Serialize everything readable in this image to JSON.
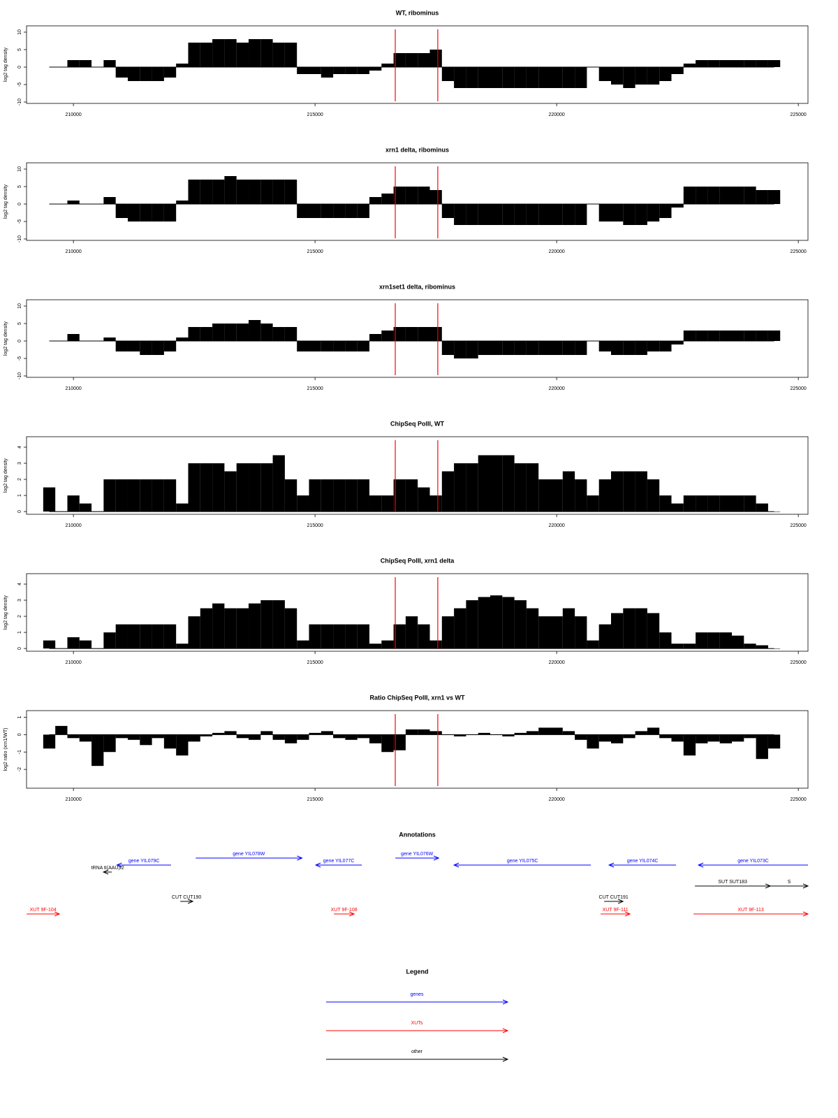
{
  "chart_data": [
    {
      "type": "bar",
      "title": "WT, ribominus",
      "ylabel": "log2 tag density",
      "x": [
        209500,
        209750,
        210000,
        210250,
        210500,
        210750,
        211000,
        211250,
        211500,
        211750,
        212000,
        212250,
        212500,
        212750,
        213000,
        213250,
        213500,
        213750,
        214000,
        214250,
        214500,
        214750,
        215000,
        215250,
        215500,
        215750,
        216000,
        216250,
        216500,
        216750,
        217000,
        217250,
        217500,
        217750,
        218000,
        218250,
        218500,
        218750,
        219000,
        219250,
        219500,
        219750,
        220000,
        220250,
        220500,
        220750,
        221000,
        221250,
        221500,
        221750,
        222000,
        222250,
        222500,
        222750,
        223000,
        223250,
        223500,
        223750,
        224000,
        224250,
        224500
      ],
      "values": [
        null,
        null,
        2,
        2,
        null,
        2,
        -3,
        -4,
        -4,
        -4,
        -3,
        1,
        7,
        7,
        8,
        8,
        7,
        8,
        8,
        7,
        7,
        -2,
        -2,
        -3,
        -2,
        -2,
        -2,
        -1,
        1,
        4,
        4,
        4,
        5,
        -4,
        -6,
        -6,
        -6,
        -6,
        -6,
        -6,
        -6,
        -6,
        -6,
        -6,
        -6,
        null,
        -4,
        -5,
        -6,
        -5,
        -5,
        -4,
        -2,
        1,
        2,
        2,
        2,
        2,
        2,
        2,
        2
      ],
      "xlim": [
        209030,
        225200
      ],
      "xticks": [
        210000,
        215000,
        220000,
        225000
      ],
      "ylim": [
        -10.4,
        11.8
      ],
      "yticks": [
        -10,
        -5,
        0,
        5,
        10
      ],
      "color": "#000000",
      "markers": [
        216660,
        217540
      ],
      "marker_color": "#ff0000"
    },
    {
      "type": "bar",
      "title": "xrn1 delta, ribominus",
      "ylabel": "log2 tag density",
      "x": [
        209500,
        209750,
        210000,
        210250,
        210500,
        210750,
        211000,
        211250,
        211500,
        211750,
        212000,
        212250,
        212500,
        212750,
        213000,
        213250,
        213500,
        213750,
        214000,
        214250,
        214500,
        214750,
        215000,
        215250,
        215500,
        215750,
        216000,
        216250,
        216500,
        216750,
        217000,
        217250,
        217500,
        217750,
        218000,
        218250,
        218500,
        218750,
        219000,
        219250,
        219500,
        219750,
        220000,
        220250,
        220500,
        220750,
        221000,
        221250,
        221500,
        221750,
        222000,
        222250,
        222500,
        222750,
        223000,
        223250,
        223500,
        223750,
        224000,
        224250,
        224500
      ],
      "values": [
        null,
        null,
        1,
        null,
        null,
        2,
        -4,
        -5,
        -5,
        -5,
        -5,
        1,
        7,
        7,
        7,
        8,
        7,
        7,
        7,
        7,
        7,
        -4,
        -4,
        -4,
        -4,
        -4,
        -4,
        2,
        3,
        5,
        5,
        5,
        4,
        -4,
        -6,
        -6,
        -6,
        -6,
        -6,
        -6,
        -6,
        -6,
        -6,
        -6,
        -6,
        null,
        -5,
        -5,
        -6,
        -6,
        -5,
        -4,
        -1,
        5,
        5,
        5,
        5,
        5,
        5,
        4,
        4
      ],
      "xlim": [
        209030,
        225200
      ],
      "xticks": [
        210000,
        215000,
        220000,
        225000
      ],
      "ylim": [
        -10.4,
        11.8
      ],
      "yticks": [
        -10,
        -5,
        0,
        5,
        10
      ],
      "color": "#000000",
      "markers": [
        216660,
        217540
      ],
      "marker_color": "#ff0000"
    },
    {
      "type": "bar",
      "title": "xrn1set1 delta, ribominus",
      "ylabel": "log2 tag density",
      "x": [
        209500,
        209750,
        210000,
        210250,
        210500,
        210750,
        211000,
        211250,
        211500,
        211750,
        212000,
        212250,
        212500,
        212750,
        213000,
        213250,
        213500,
        213750,
        214000,
        214250,
        214500,
        214750,
        215000,
        215250,
        215500,
        215750,
        216000,
        216250,
        216500,
        216750,
        217000,
        217250,
        217500,
        217750,
        218000,
        218250,
        218500,
        218750,
        219000,
        219250,
        219500,
        219750,
        220000,
        220250,
        220500,
        220750,
        221000,
        221250,
        221500,
        221750,
        222000,
        222250,
        222500,
        222750,
        223000,
        223250,
        223500,
        223750,
        224000,
        224250,
        224500
      ],
      "values": [
        null,
        null,
        2,
        null,
        null,
        1,
        -3,
        -3,
        -4,
        -4,
        -3,
        1,
        4,
        4,
        5,
        5,
        5,
        6,
        5,
        4,
        4,
        -3,
        -3,
        -3,
        -3,
        -3,
        -3,
        2,
        3,
        4,
        4,
        4,
        4,
        -4,
        -5,
        -5,
        -4,
        -4,
        -4,
        -4,
        -4,
        -4,
        -4,
        -4,
        -4,
        null,
        -3,
        -4,
        -4,
        -4,
        -3,
        -3,
        -1,
        3,
        3,
        3,
        3,
        3,
        3,
        3,
        3
      ],
      "xlim": [
        209030,
        225200
      ],
      "xticks": [
        210000,
        215000,
        220000,
        225000
      ],
      "ylim": [
        -10.4,
        11.8
      ],
      "yticks": [
        -10,
        -5,
        0,
        5,
        10
      ],
      "color": "#000000",
      "markers": [
        216660,
        217540
      ],
      "marker_color": "#ff0000"
    },
    {
      "type": "bar",
      "title": "ChipSeq PolII, WT",
      "ylabel": "log2 tag density",
      "x": [
        209500,
        209750,
        210000,
        210250,
        210500,
        210750,
        211000,
        211250,
        211500,
        211750,
        212000,
        212250,
        212500,
        212750,
        213000,
        213250,
        213500,
        213750,
        214000,
        214250,
        214500,
        214750,
        215000,
        215250,
        215500,
        215750,
        216000,
        216250,
        216500,
        216750,
        217000,
        217250,
        217500,
        217750,
        218000,
        218250,
        218500,
        218750,
        219000,
        219250,
        219500,
        219750,
        220000,
        220250,
        220500,
        220750,
        221000,
        221250,
        221500,
        221750,
        222000,
        222250,
        222500,
        222750,
        223000,
        223250,
        223500,
        223750,
        224000,
        224250,
        224500
      ],
      "values": [
        1.5,
        0,
        1,
        0.5,
        0,
        2,
        2,
        2,
        2,
        2,
        2,
        0.5,
        3,
        3,
        3,
        2.5,
        3,
        3,
        3,
        3.5,
        2,
        1,
        2,
        2,
        2,
        2,
        2,
        1,
        1,
        2,
        2,
        1.5,
        1,
        2.5,
        3,
        3,
        3.5,
        3.5,
        3.5,
        3,
        3,
        2,
        2,
        2.5,
        2,
        1,
        2,
        2.5,
        2.5,
        2.5,
        2,
        1,
        0.5,
        1,
        1,
        1,
        1,
        1,
        1,
        0.5,
        0
      ],
      "xlim": [
        209030,
        225200
      ],
      "xticks": [
        210000,
        215000,
        220000,
        225000
      ],
      "ylim": [
        -0.17,
        4.65
      ],
      "yticks": [
        0,
        1,
        2,
        3,
        4
      ],
      "color": "#000000",
      "markers": [
        216660,
        217540
      ],
      "marker_color": "#ff0000"
    },
    {
      "type": "bar",
      "title": "ChipSeq PolII, xrn1 delta",
      "ylabel": "log2 tag density",
      "x": [
        209500,
        209750,
        210000,
        210250,
        210500,
        210750,
        211000,
        211250,
        211500,
        211750,
        212000,
        212250,
        212500,
        212750,
        213000,
        213250,
        213500,
        213750,
        214000,
        214250,
        214500,
        214750,
        215000,
        215250,
        215500,
        215750,
        216000,
        216250,
        216500,
        216750,
        217000,
        217250,
        217500,
        217750,
        218000,
        218250,
        218500,
        218750,
        219000,
        219250,
        219500,
        219750,
        220000,
        220250,
        220500,
        220750,
        221000,
        221250,
        221500,
        221750,
        222000,
        222250,
        222500,
        222750,
        223000,
        223250,
        223500,
        223750,
        224000,
        224250,
        224500
      ],
      "values": [
        0.5,
        0,
        0.7,
        0.5,
        0,
        1,
        1.5,
        1.5,
        1.5,
        1.5,
        1.5,
        0.3,
        2,
        2.5,
        2.8,
        2.5,
        2.5,
        2.8,
        3,
        3,
        2.5,
        0.5,
        1.5,
        1.5,
        1.5,
        1.5,
        1.5,
        0.3,
        0.5,
        1.5,
        2,
        1.5,
        0.5,
        2,
        2.5,
        3,
        3.2,
        3.3,
        3.2,
        3,
        2.5,
        2,
        2,
        2.5,
        2,
        0.5,
        1.5,
        2.2,
        2.5,
        2.5,
        2.2,
        1,
        0.3,
        0.3,
        1,
        1,
        1,
        0.8,
        0.3,
        0.2,
        0
      ],
      "xlim": [
        209030,
        225200
      ],
      "xticks": [
        210000,
        215000,
        220000,
        225000
      ],
      "ylim": [
        -0.17,
        4.65
      ],
      "yticks": [
        0,
        1,
        2,
        3,
        4
      ],
      "color": "#000000",
      "markers": [
        216660,
        217540
      ],
      "marker_color": "#ff0000"
    },
    {
      "type": "bar",
      "title": "Ratio ChipSeq PolII, xrn1 vs WT",
      "ylabel": "log2 ratio (xrn1/WT)",
      "x": [
        209500,
        209750,
        210000,
        210250,
        210500,
        210750,
        211000,
        211250,
        211500,
        211750,
        212000,
        212250,
        212500,
        212750,
        213000,
        213250,
        213500,
        213750,
        214000,
        214250,
        214500,
        214750,
        215000,
        215250,
        215500,
        215750,
        216000,
        216250,
        216500,
        216750,
        217000,
        217250,
        217500,
        217750,
        218000,
        218250,
        218500,
        218750,
        219000,
        219250,
        219500,
        219750,
        220000,
        220250,
        220500,
        220750,
        221000,
        221250,
        221500,
        221750,
        222000,
        222250,
        222500,
        222750,
        223000,
        223250,
        223500,
        223750,
        224000,
        224250,
        224500
      ],
      "values": [
        -0.8,
        0.5,
        -0.2,
        -0.4,
        -1.8,
        -1.0,
        -0.2,
        -0.3,
        -0.6,
        -0.2,
        -0.8,
        -1.2,
        -0.4,
        -0.1,
        0.1,
        0.2,
        -0.2,
        -0.3,
        0.2,
        -0.3,
        -0.5,
        -0.3,
        0.1,
        0.2,
        -0.2,
        -0.3,
        -0.2,
        -0.5,
        -1.0,
        -0.9,
        0.3,
        0.3,
        0.2,
        0.0,
        -0.1,
        0.0,
        0.1,
        0.0,
        -0.1,
        0.1,
        0.2,
        0.4,
        0.4,
        0.2,
        -0.3,
        -0.8,
        -0.4,
        -0.5,
        -0.2,
        0.2,
        0.4,
        -0.2,
        -0.4,
        -1.2,
        -0.5,
        -0.4,
        -0.5,
        -0.4,
        -0.2,
        -1.4,
        -0.8
      ],
      "xlim": [
        209030,
        225200
      ],
      "xticks": [
        210000,
        215000,
        220000,
        225000
      ],
      "ylim": [
        -3.08,
        1.38
      ],
      "yticks": [
        -2,
        -1,
        0,
        1
      ],
      "color": "#000000",
      "markers": [
        216660,
        217540
      ],
      "marker_color": "#ff0000"
    }
  ],
  "annotations": {
    "title": "Annotations",
    "xlim": [
      209030,
      225200
    ],
    "features": [
      {
        "label": "gene YIL079C",
        "kind": "gene",
        "strand": "-",
        "start": 210900,
        "end": 212020,
        "color": "#0000ff"
      },
      {
        "label": "gene YIL078W",
        "kind": "gene",
        "strand": "+",
        "start": 212530,
        "end": 214730,
        "color": "#0000ff"
      },
      {
        "label": "gene YIL077C",
        "kind": "gene",
        "strand": "-",
        "start": 215014,
        "end": 215968,
        "color": "#0000ff"
      },
      {
        "label": "gene YIL076W",
        "kind": "gene",
        "strand": "+",
        "start": 216662,
        "end": 217558,
        "color": "#0000ff"
      },
      {
        "label": "gene YIL075C",
        "kind": "gene",
        "strand": "-",
        "start": 217876,
        "end": 220708,
        "color": "#0000ff"
      },
      {
        "label": "gene YIL074C",
        "kind": "gene",
        "strand": "-",
        "start": 221084,
        "end": 222471,
        "color": "#0000ff"
      },
      {
        "label": "gene YIL073C",
        "kind": "gene",
        "strand": "-",
        "start": 222933,
        "end": 225200,
        "color": "#0000ff"
      },
      {
        "label": "tRNA tI(AAU)I2",
        "kind": "tRNA",
        "strand": "-",
        "start": 210621,
        "end": 210795,
        "color": "#000000"
      },
      {
        "label": "SUT SUT183",
        "kind": "SUT",
        "strand": "+",
        "start": 222861,
        "end": 224422,
        "color": "#000000"
      },
      {
        "label": "S",
        "kind": "SUT",
        "strand": "+",
        "start": 224422,
        "end": 225200,
        "color": "#000000"
      },
      {
        "label": "CUT CUT190",
        "kind": "CUT",
        "strand": "+",
        "start": 212211,
        "end": 212471,
        "color": "#000000"
      },
      {
        "label": "CUT CUT191",
        "kind": "CUT",
        "strand": "+",
        "start": 220983,
        "end": 221373,
        "color": "#000000"
      },
      {
        "label": "XUT 9F-104",
        "kind": "XUT",
        "strand": "+",
        "start": 209032,
        "end": 209711,
        "color": "#ff0000"
      },
      {
        "label": "XUT 9F-108",
        "kind": "XUT",
        "strand": "+",
        "start": 215390,
        "end": 215809,
        "color": "#ff0000"
      },
      {
        "label": "XUT 9F-111",
        "kind": "XUT",
        "strand": "+",
        "start": 220910,
        "end": 221517,
        "color": "#ff0000"
      },
      {
        "label": "XUT 9F-113",
        "kind": "XUT",
        "strand": "+",
        "start": 222832,
        "end": 225200,
        "color": "#ff0000"
      }
    ]
  },
  "legend": {
    "title": "Legend",
    "entries": [
      {
        "label": "genes",
        "color": "#0000ff"
      },
      {
        "label": "XUTs",
        "color": "#ff0000"
      },
      {
        "label": "other",
        "color": "#000000"
      }
    ]
  }
}
